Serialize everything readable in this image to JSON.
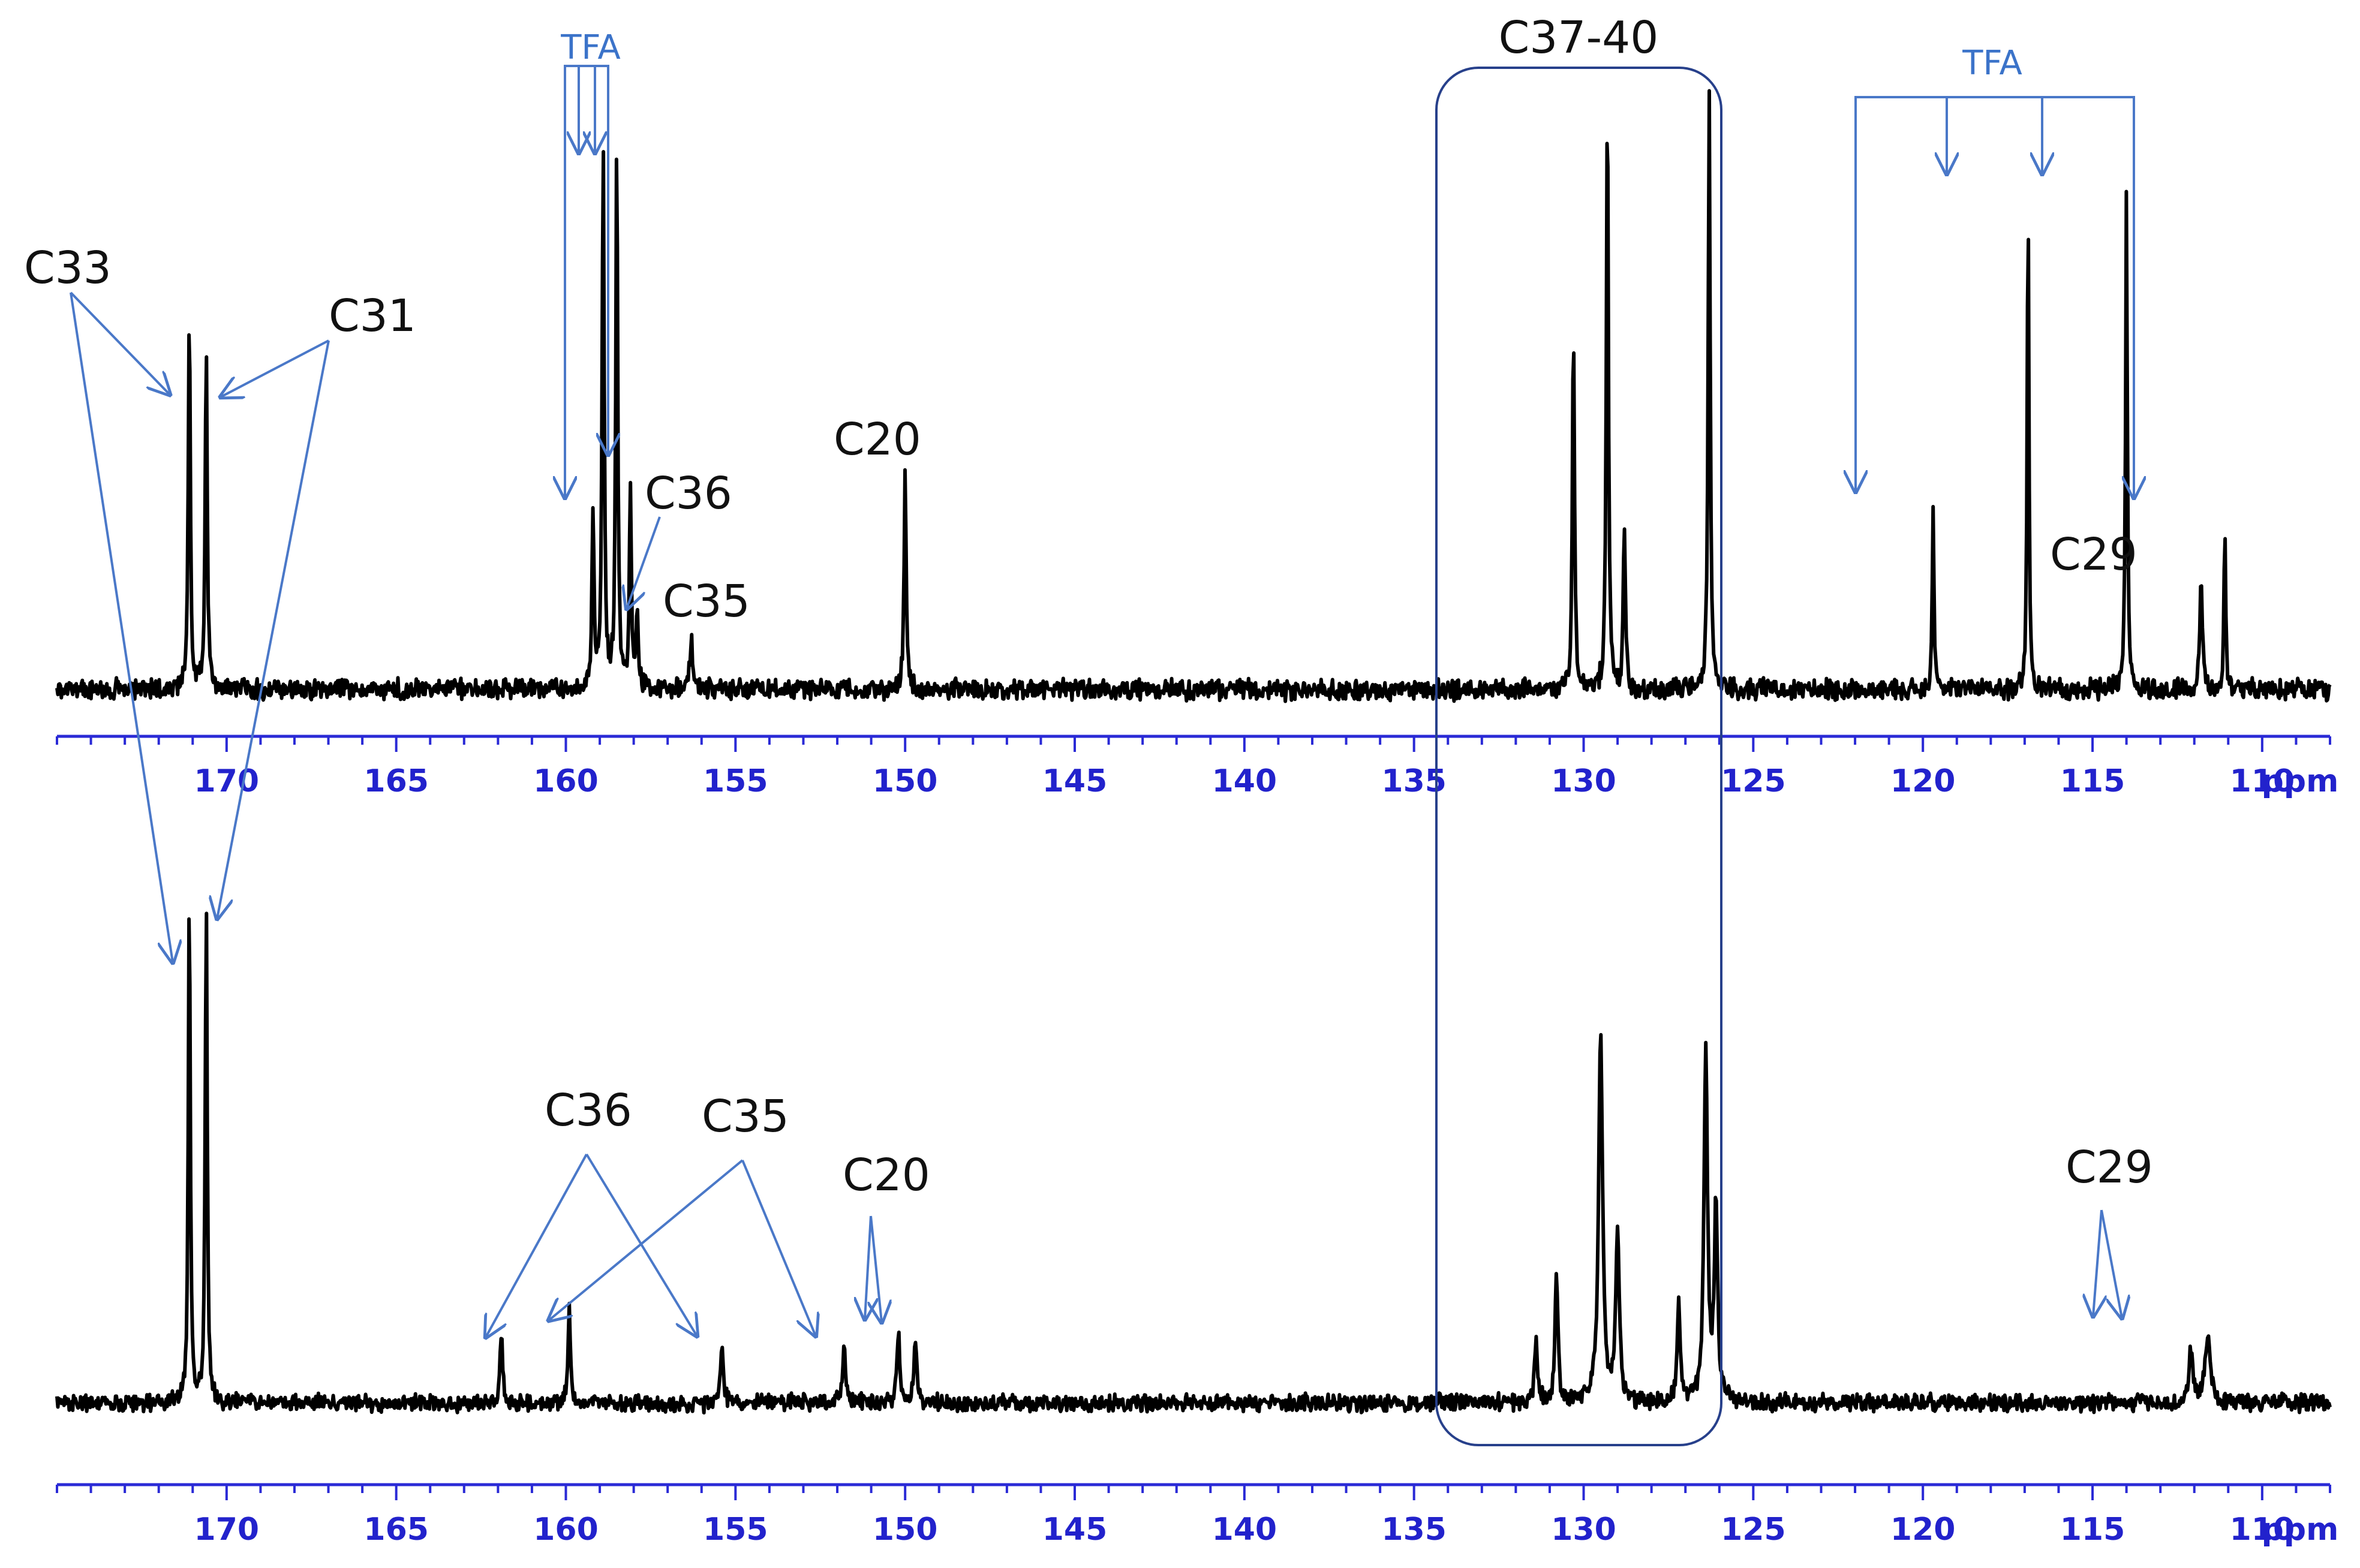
{
  "chart_data": [
    {
      "type": "line",
      "name": "top-spectrum",
      "xlabel": "ppm",
      "xlim": [
        175,
        108
      ],
      "ticks": [
        170,
        165,
        160,
        155,
        150,
        145,
        140,
        135,
        130,
        125,
        120,
        115,
        110
      ],
      "peaks": [
        {
          "ppm": 171.1,
          "height": 0.64,
          "width": 0.07
        },
        {
          "ppm": 170.6,
          "height": 0.57,
          "width": 0.07
        },
        {
          "ppm": 159.2,
          "height": 0.29,
          "width": 0.07
        },
        {
          "ppm": 158.9,
          "height": 0.91,
          "width": 0.07
        },
        {
          "ppm": 158.5,
          "height": 0.9,
          "width": 0.07
        },
        {
          "ppm": 158.1,
          "height": 0.32,
          "width": 0.07
        },
        {
          "ppm": 157.9,
          "height": 0.14,
          "width": 0.08
        },
        {
          "ppm": 156.3,
          "height": 0.08,
          "width": 0.1
        },
        {
          "ppm": 150.0,
          "height": 0.37,
          "width": 0.07
        },
        {
          "ppm": 130.3,
          "height": 0.61,
          "width": 0.07
        },
        {
          "ppm": 129.3,
          "height": 1.0,
          "width": 0.07
        },
        {
          "ppm": 128.8,
          "height": 0.28,
          "width": 0.07
        },
        {
          "ppm": 126.3,
          "height": 1.0,
          "width": 0.07
        },
        {
          "ppm": 119.7,
          "height": 0.31,
          "width": 0.06
        },
        {
          "ppm": 116.9,
          "height": 0.82,
          "width": 0.06
        },
        {
          "ppm": 114.0,
          "height": 0.84,
          "width": 0.06
        },
        {
          "ppm": 111.8,
          "height": 0.17,
          "width": 0.1
        },
        {
          "ppm": 111.1,
          "height": 0.28,
          "width": 0.06
        }
      ],
      "annotations": [
        "C33",
        "C31",
        "TFA",
        "C36",
        "C35",
        "C20",
        "C37-40",
        "TFA",
        "C29"
      ]
    },
    {
      "type": "line",
      "name": "bottom-spectrum",
      "xlabel": "ppm",
      "xlim": [
        175,
        108
      ],
      "ticks": [
        170,
        165,
        160,
        155,
        150,
        145,
        140,
        135,
        130,
        125,
        120,
        115,
        110
      ],
      "peaks": [
        {
          "ppm": 171.1,
          "height": 1.0,
          "width": 0.07
        },
        {
          "ppm": 170.6,
          "height": 0.99,
          "width": 0.07
        },
        {
          "ppm": 161.9,
          "height": 0.13,
          "width": 0.1
        },
        {
          "ppm": 159.9,
          "height": 0.19,
          "width": 0.08
        },
        {
          "ppm": 155.4,
          "height": 0.11,
          "width": 0.1
        },
        {
          "ppm": 151.8,
          "height": 0.12,
          "width": 0.1
        },
        {
          "ppm": 150.2,
          "height": 0.14,
          "width": 0.1
        },
        {
          "ppm": 149.7,
          "height": 0.12,
          "width": 0.1
        },
        {
          "ppm": 131.4,
          "height": 0.12,
          "width": 0.1
        },
        {
          "ppm": 130.8,
          "height": 0.25,
          "width": 0.1
        },
        {
          "ppm": 129.5,
          "height": 0.72,
          "width": 0.14
        },
        {
          "ppm": 129.0,
          "height": 0.34,
          "width": 0.12
        },
        {
          "ppm": 127.2,
          "height": 0.2,
          "width": 0.1
        },
        {
          "ppm": 126.4,
          "height": 0.7,
          "width": 0.12
        },
        {
          "ppm": 126.1,
          "height": 0.38,
          "width": 0.12
        },
        {
          "ppm": 112.1,
          "height": 0.1,
          "width": 0.15
        },
        {
          "ppm": 111.6,
          "height": 0.13,
          "width": 0.18
        }
      ],
      "annotations": [
        "C36",
        "C35",
        "C20",
        "C29"
      ]
    }
  ],
  "labels": {
    "c33": "C33",
    "c31": "C31",
    "tfa_left": "TFA",
    "tfa_right": "TFA",
    "c36_top": "C36",
    "c35_top": "C35",
    "c20_top": "C20",
    "c37_40": "C37-40",
    "c29_top": "C29",
    "c36_bottom": "C36",
    "c35_bottom": "C35",
    "c20_bottom": "C20",
    "c29_bottom": "C29",
    "ppm_top": "ppm",
    "ppm_bottom": "ppm"
  }
}
